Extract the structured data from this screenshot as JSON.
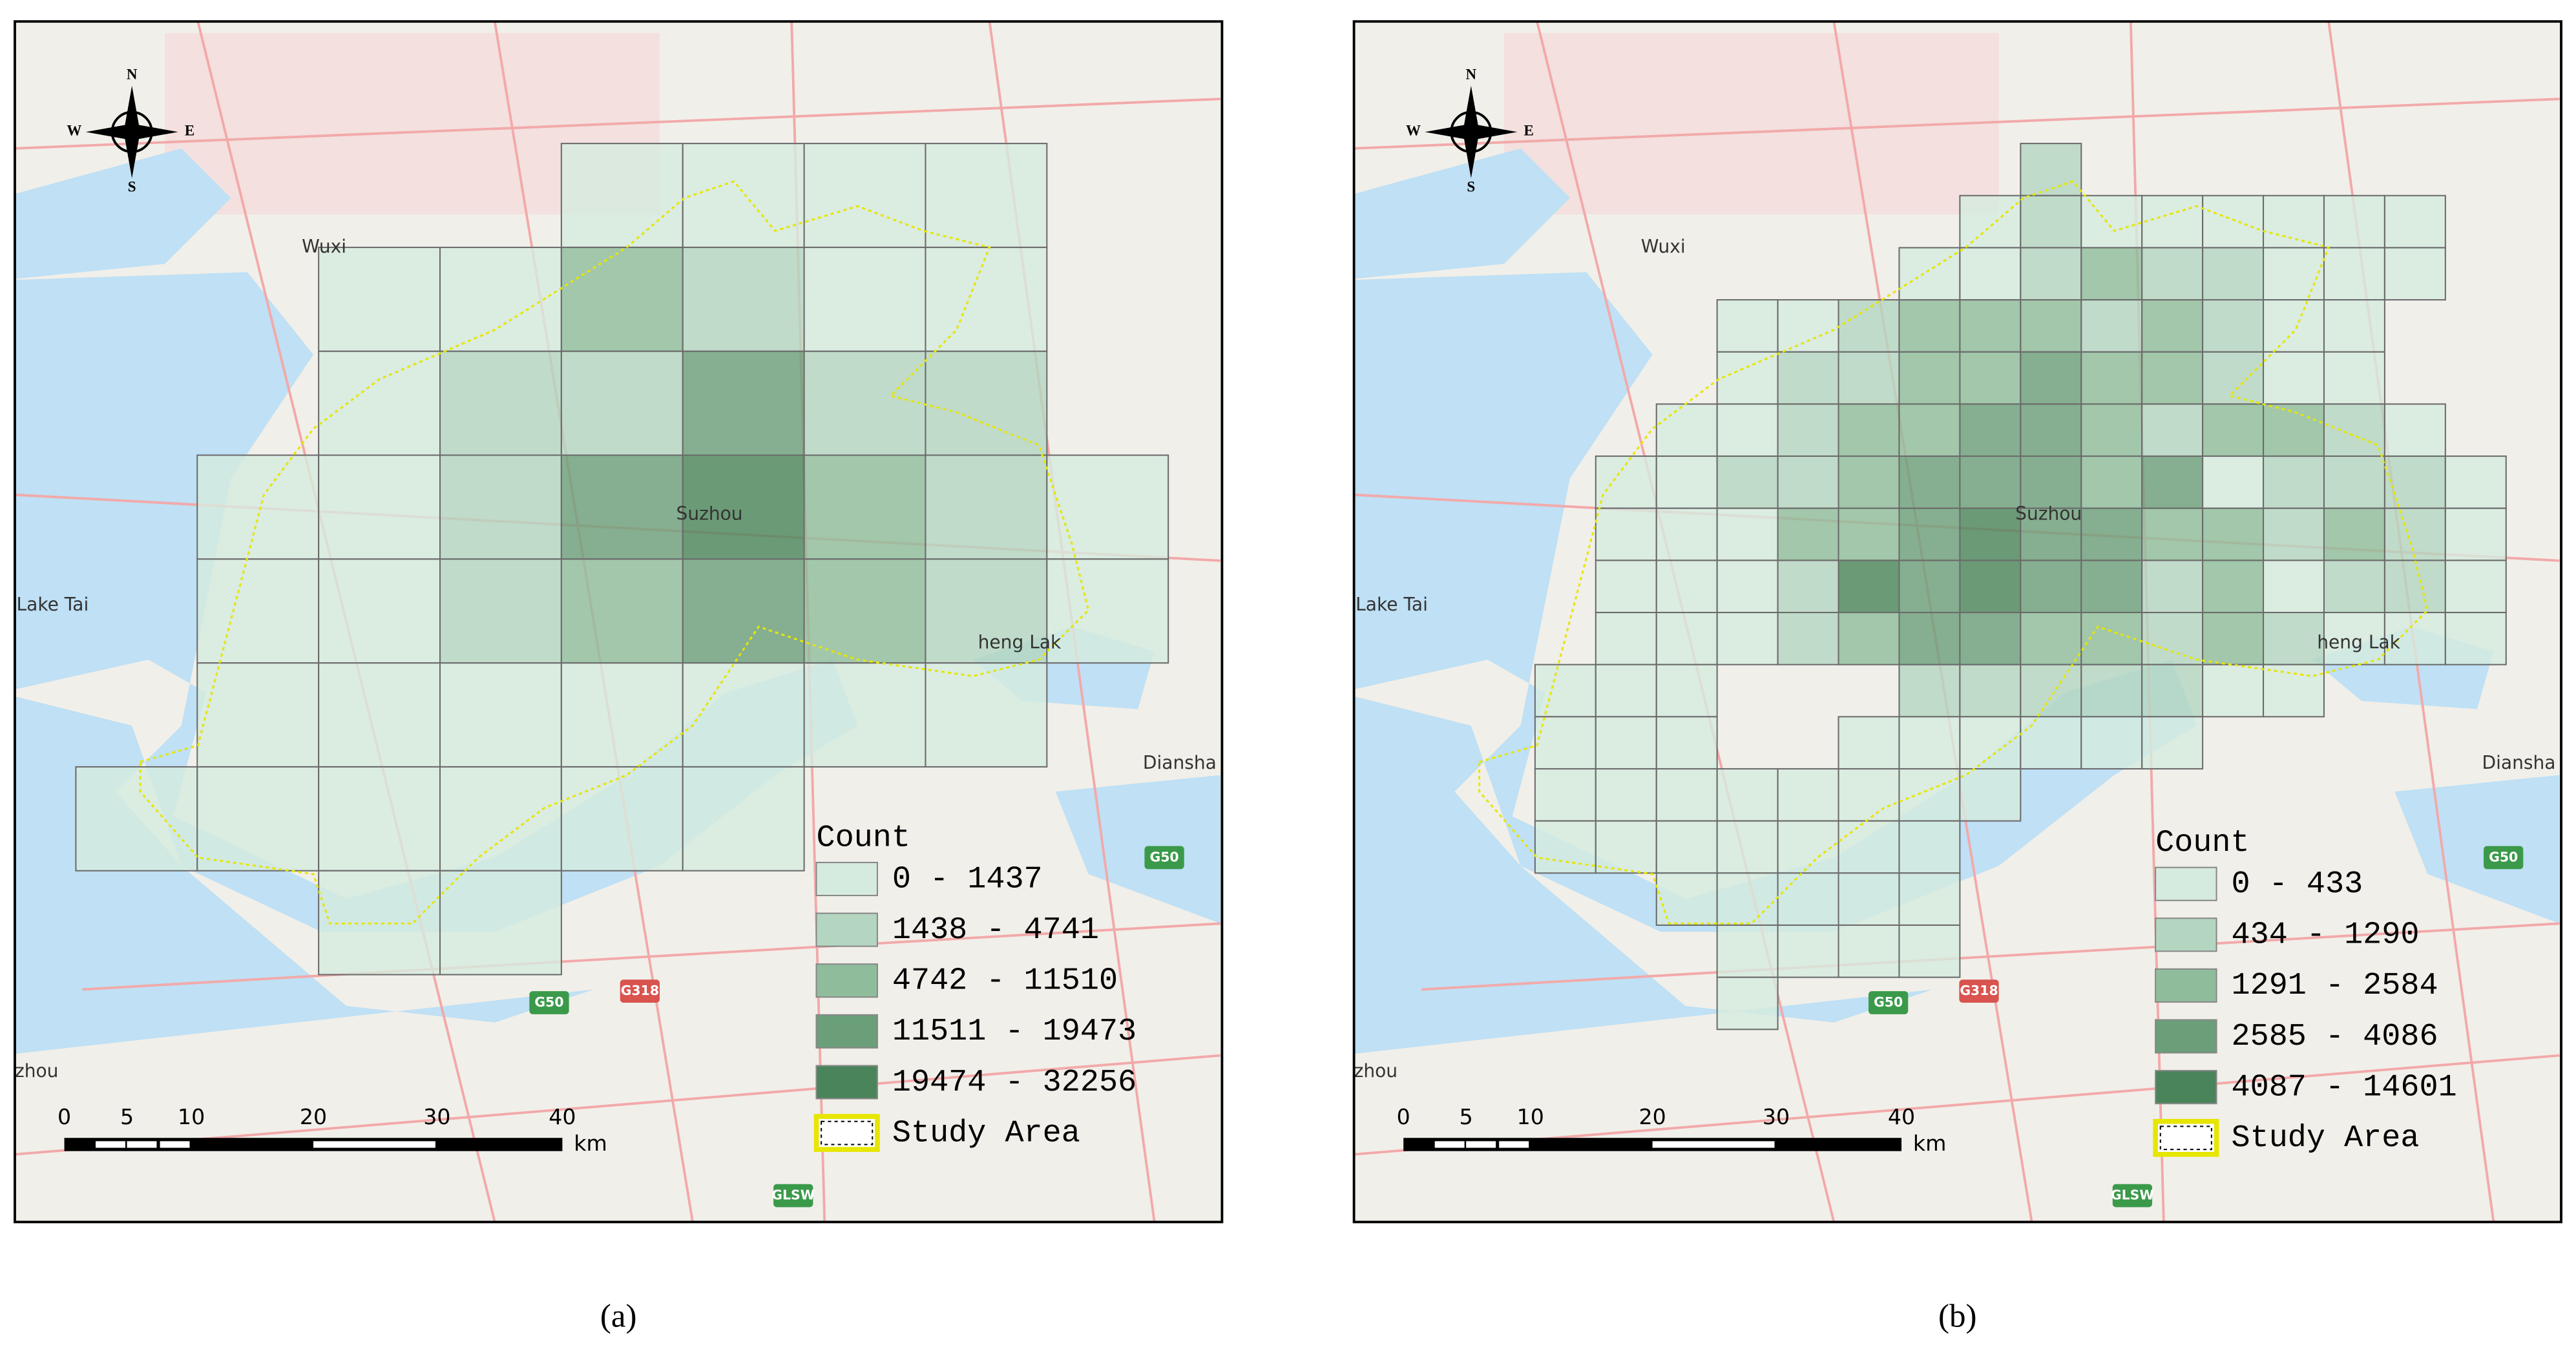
{
  "panels": [
    {
      "label": "(a)",
      "places": [
        "Wuxi",
        "Suzhou",
        "Lake Tai",
        "heng Lak",
        "Diansha",
        "zhou"
      ],
      "shields": [
        "G50",
        "G318",
        "GLSW",
        "G50"
      ],
      "compass": [
        "N",
        "S",
        "W",
        "E"
      ],
      "scale": [
        "0",
        "5",
        "10",
        "20",
        "30",
        "40",
        "km"
      ],
      "legend": {
        "title": "Count",
        "classes": [
          "0 - 1437",
          "1438 - 4741",
          "4742 - 11510",
          "11511 - 19473",
          "19474 - 32256"
        ],
        "study_area": "Study Area"
      }
    },
    {
      "label": "(b)",
      "places": [
        "Wuxi",
        "Suzhou",
        "Lake Tai",
        "heng Lak",
        "Diansha",
        "zhou"
      ],
      "shields": [
        "G50",
        "G318",
        "GLSW",
        "G50"
      ],
      "compass": [
        "N",
        "S",
        "W",
        "E"
      ],
      "scale": [
        "0",
        "5",
        "10",
        "20",
        "30",
        "40",
        "km"
      ],
      "legend": {
        "title": "Count",
        "classes": [
          "0 - 433",
          "434 - 1290",
          "1291 - 2584",
          "2585 - 4086",
          "4087 - 14601"
        ],
        "study_area": "Study Area"
      }
    }
  ]
}
